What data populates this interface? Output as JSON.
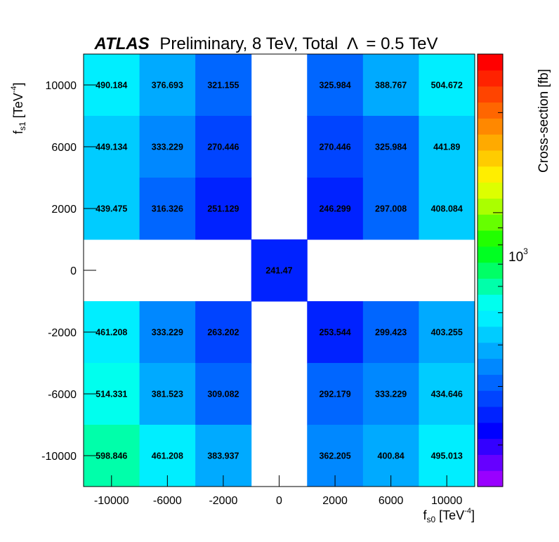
{
  "chart_data": {
    "type": "heatmap",
    "title": {
      "bold": "ATLAS",
      "rest": "Preliminary, 8 TeV, Total",
      "lambda_symbol": "Λ",
      "lambda_value": "= 0.5 TeV"
    },
    "xlabel": {
      "main": "f",
      "sub": "s0",
      "unit_open": "[TeV",
      "unit_sup": "-4",
      "unit_close": "]"
    },
    "ylabel": {
      "main": "f",
      "sub": "s1",
      "unit_open": "[TeV",
      "unit_sup": "-4",
      "unit_close": "]"
    },
    "zlabel": "Cross-section [fb]",
    "z_tick_label": {
      "base": "10",
      "exp": "3"
    },
    "z_scale": "log",
    "z_range": [
      150,
      3000
    ],
    "x_categories": [
      "-10000",
      "-6000",
      "-2000",
      "0",
      "2000",
      "6000",
      "10000"
    ],
    "y_categories": [
      "10000",
      "6000",
      "2000",
      "0",
      "-2000",
      "-6000",
      "-10000"
    ],
    "values": [
      [
        490.184,
        376.693,
        321.155,
        null,
        325.984,
        388.767,
        504.672
      ],
      [
        449.134,
        333.229,
        270.446,
        null,
        270.446,
        325.984,
        441.89
      ],
      [
        439.475,
        316.326,
        251.129,
        null,
        246.299,
        297.008,
        408.084
      ],
      [
        null,
        null,
        null,
        241.47,
        null,
        null,
        null
      ],
      [
        461.208,
        333.229,
        263.202,
        null,
        253.544,
        299.423,
        403.255
      ],
      [
        514.331,
        381.523,
        309.082,
        null,
        292.179,
        333.229,
        434.646
      ],
      [
        598.846,
        461.208,
        383.937,
        null,
        362.205,
        400.84,
        495.013
      ]
    ],
    "value_labels": [
      [
        "490.184",
        "376.693",
        "321.155",
        "",
        "325.984",
        "388.767",
        "504.672"
      ],
      [
        "449.134",
        "333.229",
        "270.446",
        "",
        "270.446",
        "325.984",
        "441.89"
      ],
      [
        "439.475",
        "316.326",
        "251.129",
        "",
        "246.299",
        "297.008",
        "408.084"
      ],
      [
        "",
        "",
        "",
        "241.47",
        "",
        "",
        ""
      ],
      [
        "461.208",
        "333.229",
        "263.202",
        "",
        "253.544",
        "299.423",
        "403.255"
      ],
      [
        "514.331",
        "381.523",
        "309.082",
        "",
        "292.179",
        "333.229",
        "434.646"
      ],
      [
        "598.846",
        "461.208",
        "383.937",
        "",
        "362.205",
        "400.84",
        "495.013"
      ]
    ],
    "palette": [
      "#9900ff",
      "#6600ff",
      "#3300ff",
      "#0000ff",
      "#0022ff",
      "#0044ff",
      "#0066ff",
      "#0088ff",
      "#00aaff",
      "#00ccff",
      "#00eeff",
      "#00ffee",
      "#00ffaa",
      "#00ff66",
      "#00ff22",
      "#22ff00",
      "#66ff00",
      "#aaff00",
      "#ddff00",
      "#ffee00",
      "#ffcc00",
      "#ffaa00",
      "#ff8800",
      "#ff6600",
      "#ff4400",
      "#ff2200",
      "#ff0000"
    ],
    "grid": false,
    "legend": "colorbar-right"
  }
}
